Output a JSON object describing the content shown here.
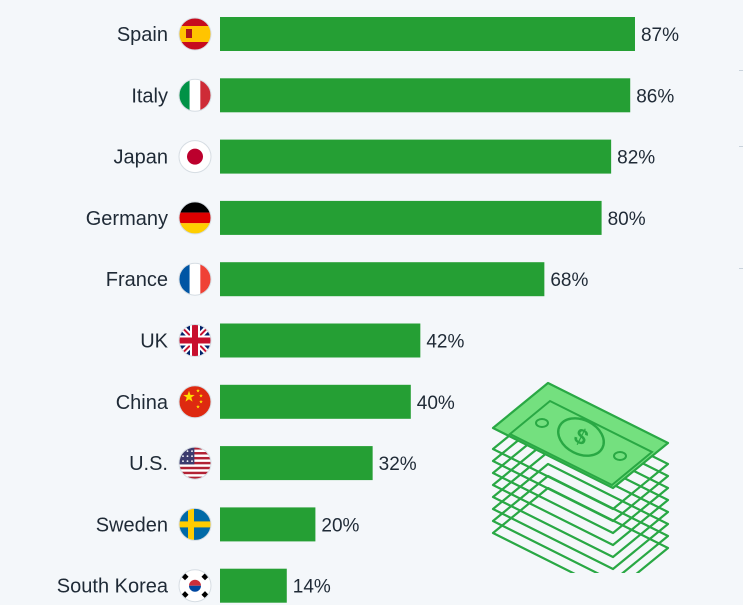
{
  "chart_data": {
    "type": "bar",
    "orientation": "horizontal",
    "categories": [
      "Spain",
      "Italy",
      "Japan",
      "Germany",
      "France",
      "UK",
      "China",
      "U.S.",
      "Sweden",
      "South Korea"
    ],
    "values": [
      87,
      86,
      82,
      80,
      68,
      42,
      40,
      32,
      20,
      14
    ],
    "value_labels": [
      "87%",
      "86%",
      "82%",
      "80%",
      "68%",
      "42%",
      "40%",
      "32%",
      "20%",
      "14%"
    ],
    "flag_icons": [
      "flag-spain-icon",
      "flag-italy-icon",
      "flag-japan-icon",
      "flag-germany-icon",
      "flag-france-icon",
      "flag-uk-icon",
      "flag-china-icon",
      "flag-us-icon",
      "flag-sweden-icon",
      "flag-south-korea-icon"
    ],
    "unit": "%",
    "xlim": [
      0,
      100
    ],
    "bar_color": "#259f34",
    "grid": false,
    "legend": "none"
  },
  "decoration": {
    "illustration_icon": "money-stack-icon",
    "accent_color": "#74e07f"
  }
}
